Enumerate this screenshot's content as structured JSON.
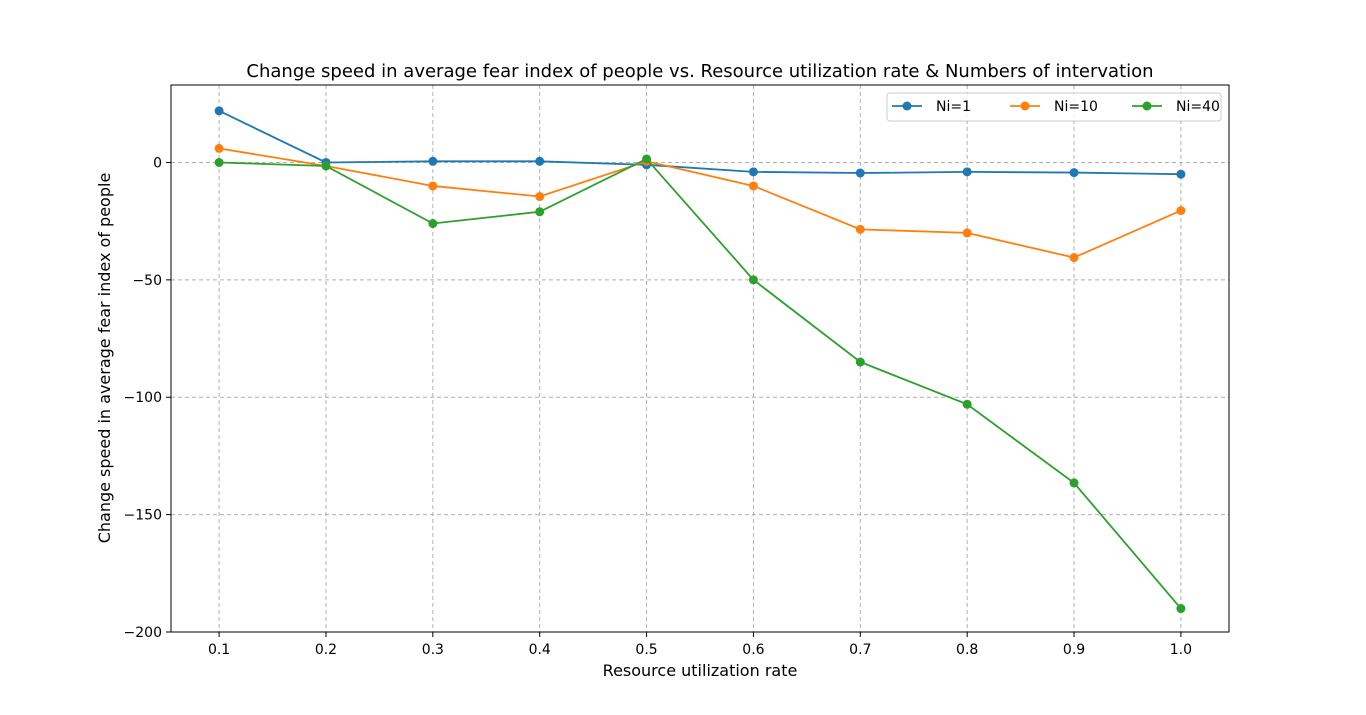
{
  "chart_data": {
    "type": "line",
    "title": "Change speed in average fear index of people vs. Resource utilization rate & Numbers of intervation",
    "xlabel": "Resource utilization rate",
    "ylabel": "Change speed in average fear index of people",
    "x": [
      0.1,
      0.2,
      0.3,
      0.4,
      0.5,
      0.6,
      0.7,
      0.8,
      0.9,
      1.0
    ],
    "x_tick_labels": [
      "0.1",
      "0.2",
      "0.3",
      "0.4",
      "0.5",
      "0.6",
      "0.7",
      "0.8",
      "0.9",
      "1.0"
    ],
    "y_ticks": [
      0,
      -50,
      -100,
      -150,
      -200
    ],
    "y_tick_labels": [
      "0",
      "−50",
      "−100",
      "−150",
      "−200"
    ],
    "xlim": [
      0.055,
      1.045
    ],
    "ylim": [
      -200,
      33
    ],
    "grid": true,
    "legend_position": "top-right",
    "series": [
      {
        "name": "Ni=1",
        "color": "#1f77b4",
        "values": [
          22,
          0,
          0.5,
          0.5,
          -1,
          -4,
          -4.5,
          -4,
          -4.3,
          -5
        ]
      },
      {
        "name": "Ni=10",
        "color": "#ff7f0e",
        "values": [
          6,
          -1.5,
          -10,
          -14.5,
          0.5,
          -10,
          -28.5,
          -30,
          -40.5,
          -20.5
        ]
      },
      {
        "name": "Ni=40",
        "color": "#2ca02c",
        "values": [
          0,
          -1.5,
          -26,
          -21,
          1.5,
          -50,
          -85,
          -103,
          -136.5,
          -190
        ]
      }
    ]
  }
}
